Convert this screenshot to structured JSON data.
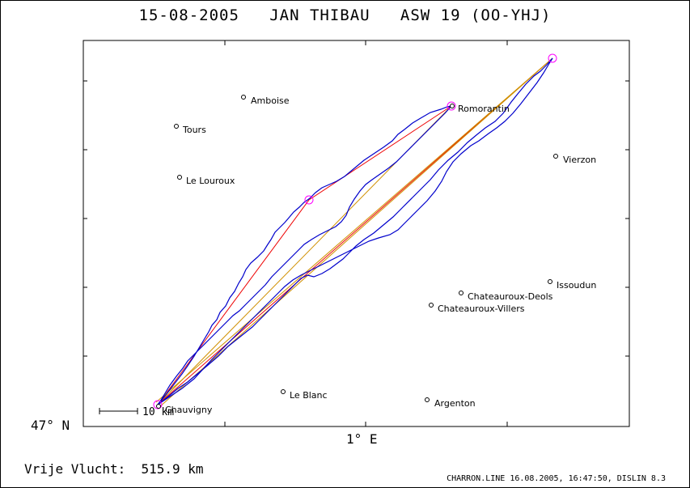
{
  "title": "15-08-2005   JAN THIBAU   ASW 19 (OO-YHJ)",
  "axes": {
    "y_label": "47° N",
    "x_label": "1° E"
  },
  "scale_bar": "10 km",
  "places": [
    {
      "name": "Amboise"
    },
    {
      "name": "Tours"
    },
    {
      "name": "Le Louroux"
    },
    {
      "name": "Romorantin"
    },
    {
      "name": "Vierzon"
    },
    {
      "name": "Issoudun"
    },
    {
      "name": "Chateauroux-Deols"
    },
    {
      "name": "Chateauroux-Villers"
    },
    {
      "name": "Le Blanc"
    },
    {
      "name": "Argenton"
    },
    {
      "name": "Chauvigny"
    }
  ],
  "footer": {
    "distance": "Vrije Vlucht:  515.9 km",
    "software": "CHARRON.LINE 16.08.2005, 16:47:50, DISLIN 8.3"
  },
  "colors": {
    "track": "#0000cc",
    "task_line_red": "#ee0000",
    "task_line_orange": "#d09000",
    "turnpoint": "#ff00ff"
  }
}
